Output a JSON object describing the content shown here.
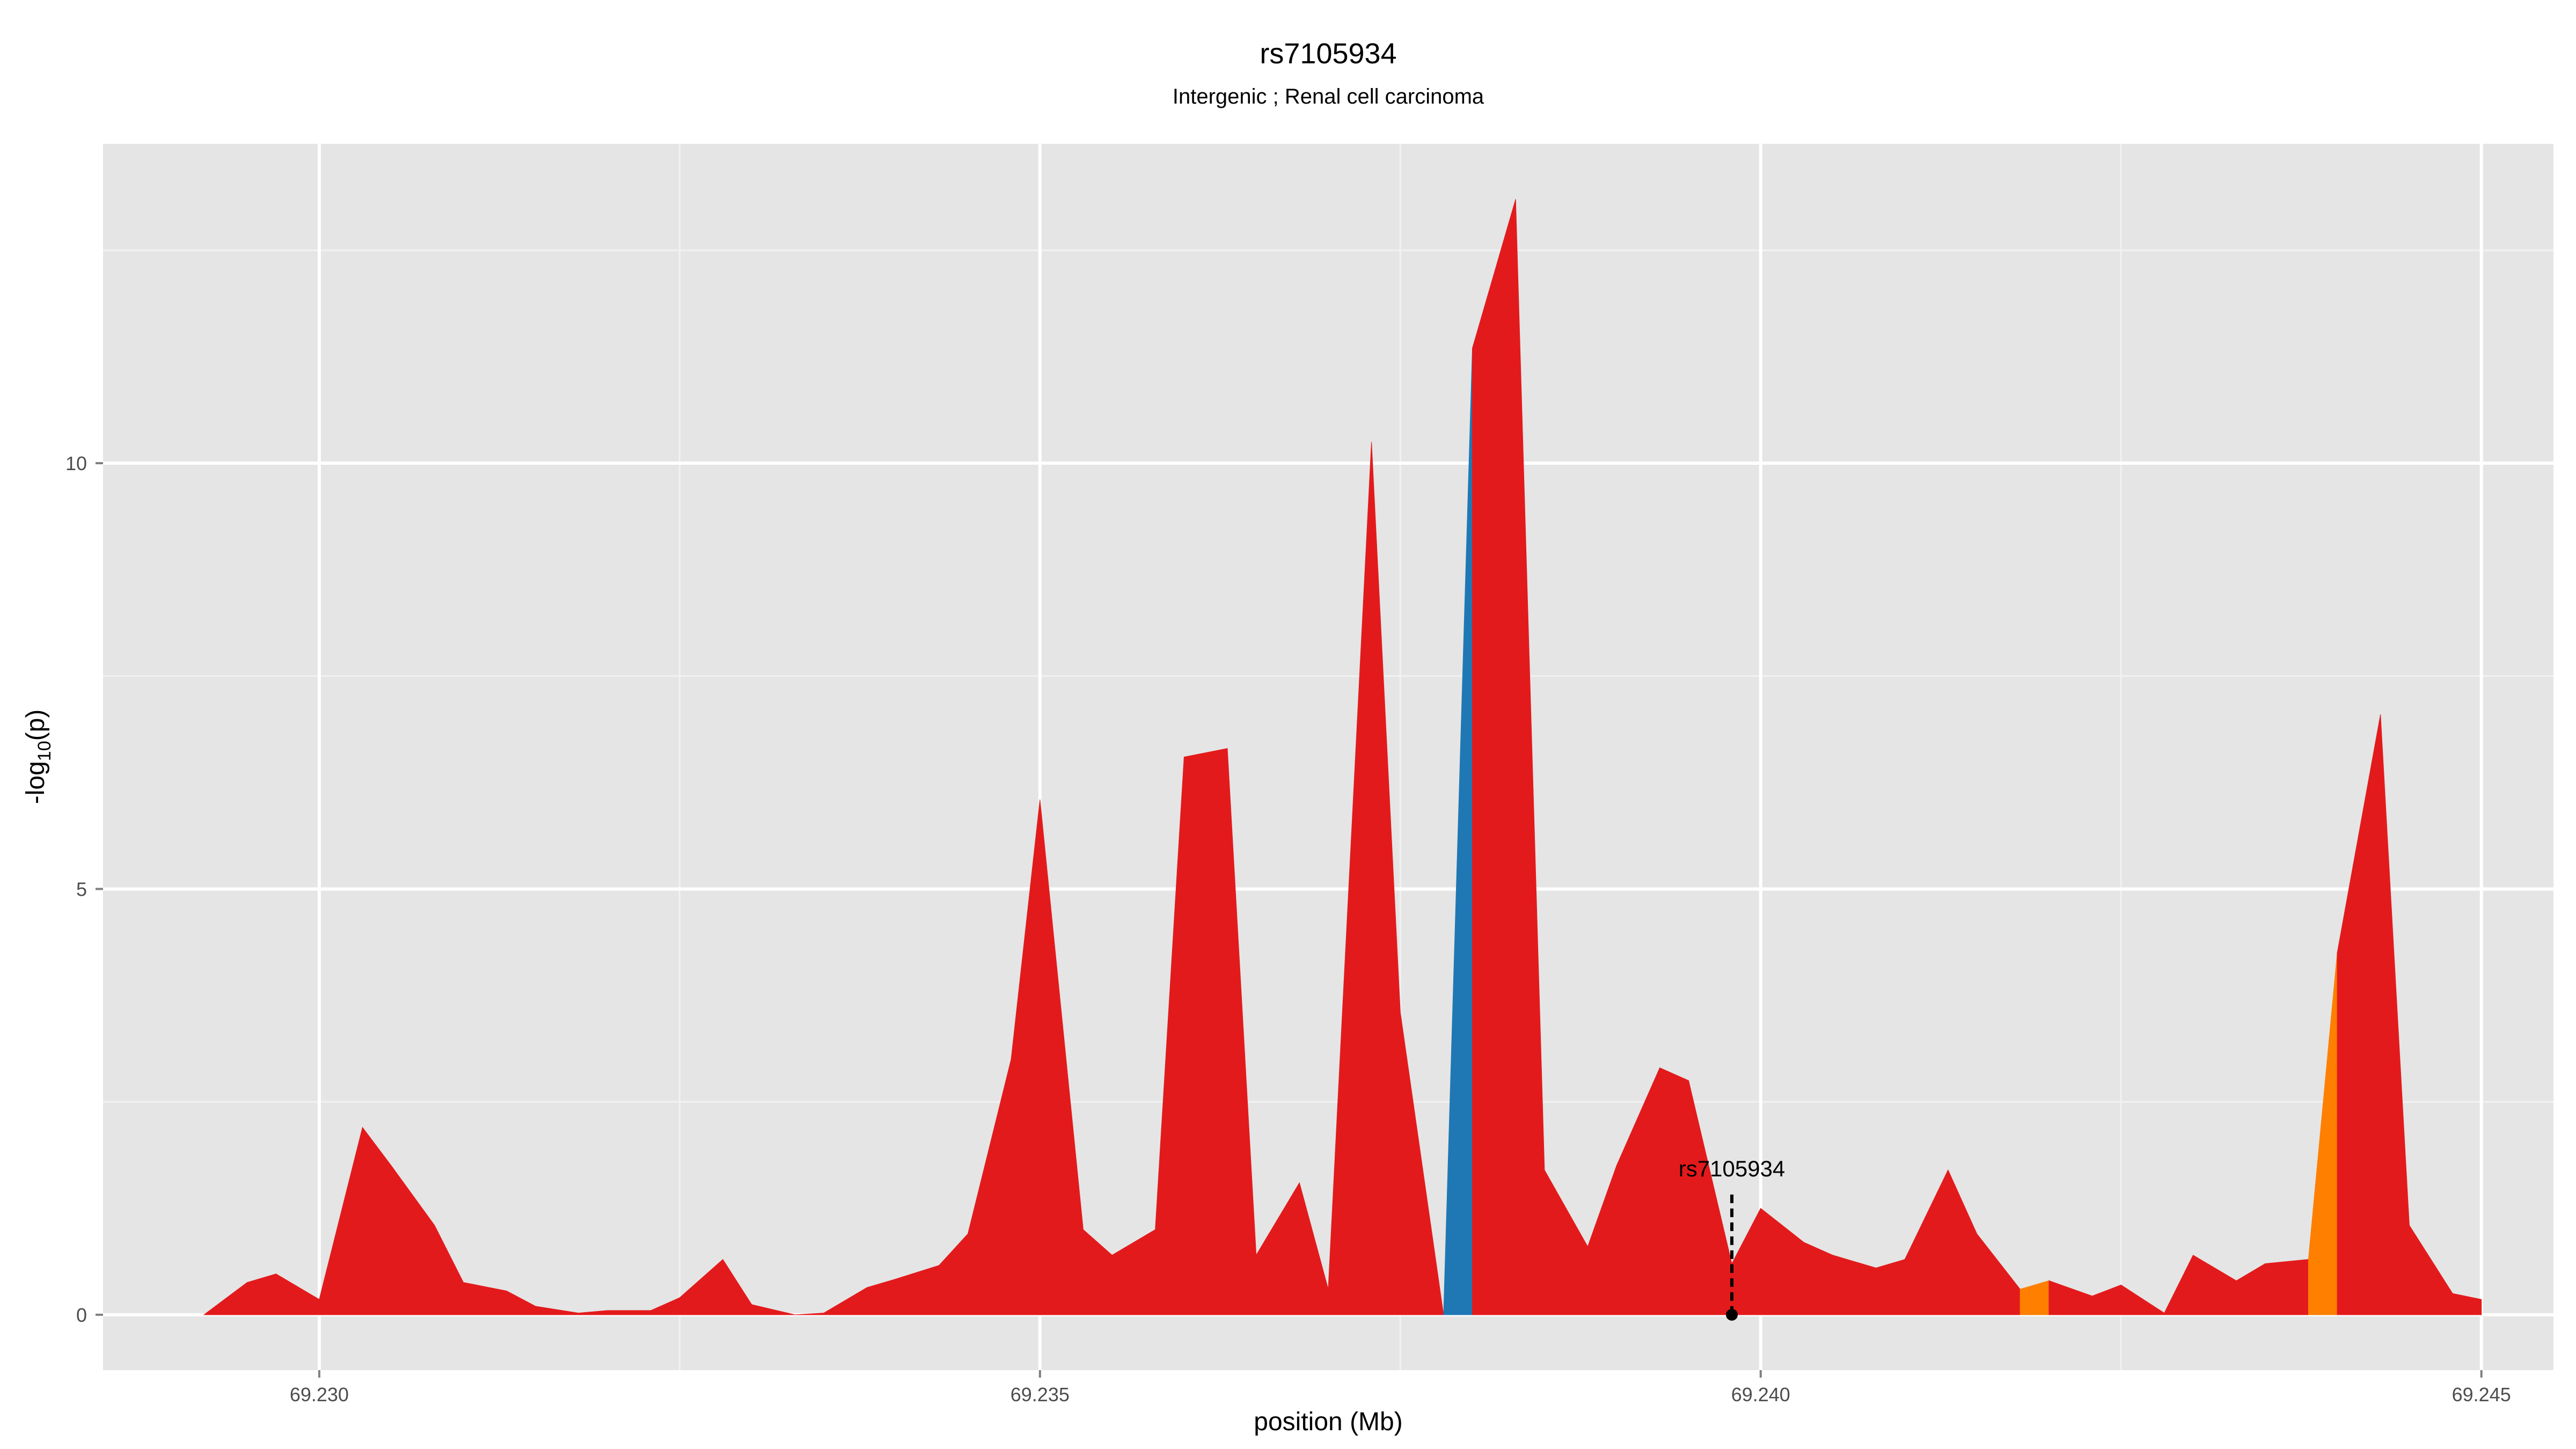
{
  "chart_data": {
    "type": "area",
    "title": "rs7105934",
    "subtitle": "Intergenic ; Renal cell carcinoma",
    "xlabel": "position (Mb)",
    "ylabel": "-log10(p)",
    "xlim": [
      69.2285,
      69.2455
    ],
    "ylim": [
      -0.65,
      13.75
    ],
    "x_ticks": [
      {
        "value": 69.23,
        "label": "69.230"
      },
      {
        "value": 69.235,
        "label": "69.235"
      },
      {
        "value": 69.24,
        "label": "69.240"
      },
      {
        "value": 69.245,
        "label": "69.245"
      }
    ],
    "y_ticks": [
      {
        "value": 0,
        "label": "0"
      },
      {
        "value": 5,
        "label": "5"
      },
      {
        "value": 10,
        "label": "10"
      }
    ],
    "grid": true,
    "legend": "none",
    "colors": {
      "red": "#e31a1c",
      "blue": "#1f78b4",
      "orange": "#ff7f00",
      "panel": "#e5e5e5",
      "grid_major": "#ffffff",
      "grid_minor": "#f2f2f2"
    },
    "series": {
      "x": [
        69.2292,
        69.2295,
        69.2297,
        69.23,
        69.2303,
        69.2305,
        69.2308,
        69.231,
        69.2313,
        69.2315,
        69.2318,
        69.232,
        69.2323,
        69.2325,
        69.2328,
        69.233,
        69.2333,
        69.2335,
        69.2338,
        69.234,
        69.2343,
        69.2345,
        69.2348,
        69.235,
        69.2353,
        69.2355,
        69.2358,
        69.236,
        69.2363,
        69.2365,
        69.2368,
        69.237,
        69.2373,
        69.2375,
        69.2378,
        69.238,
        69.2383,
        69.2385,
        69.2388,
        69.239,
        69.2393,
        69.2395,
        69.2398,
        69.24,
        69.2403,
        69.2405,
        69.2408,
        69.241,
        69.2413,
        69.2415,
        69.2418,
        69.242,
        69.2423,
        69.2425,
        69.2428,
        69.243,
        69.2433,
        69.2435,
        69.2438,
        69.244,
        69.2443,
        69.2445,
        69.2448,
        69.245
      ],
      "y": [
        0.0,
        0.38,
        0.48,
        0.18,
        2.2,
        1.75,
        1.05,
        0.38,
        0.28,
        0.1,
        0.02,
        0.05,
        0.05,
        0.2,
        0.65,
        0.12,
        0.0,
        0.02,
        0.32,
        0.42,
        0.58,
        0.95,
        3.0,
        6.05,
        1.0,
        0.7,
        1.0,
        6.55,
        6.65,
        0.7,
        1.55,
        0.3,
        10.25,
        3.55,
        0.0,
        11.35,
        13.1,
        1.7,
        0.8,
        1.75,
        2.9,
        2.75,
        0.6,
        1.25,
        0.85,
        0.7,
        0.55,
        0.65,
        1.7,
        0.95,
        0.3,
        0.4,
        0.22,
        0.35,
        0.02,
        0.7,
        0.4,
        0.6,
        0.65,
        4.25,
        7.05,
        1.05,
        0.25,
        0.18
      ],
      "color_segments": [
        {
          "x_start": 69.2292,
          "x_end": 69.2378,
          "color": "red"
        },
        {
          "x_start": 69.2378,
          "x_end": 69.238,
          "color": "blue"
        },
        {
          "x_start": 69.238,
          "x_end": 69.2418,
          "color": "red"
        },
        {
          "x_start": 69.2418,
          "x_end": 69.242,
          "color": "orange"
        },
        {
          "x_start": 69.242,
          "x_end": 69.2438,
          "color": "red"
        },
        {
          "x_start": 69.2438,
          "x_end": 69.244,
          "color": "orange"
        },
        {
          "x_start": 69.244,
          "x_end": 69.245,
          "color": "red"
        }
      ]
    },
    "annotation": {
      "label": "rs7105934",
      "x": 69.2398,
      "y": 0,
      "label_y": 1.55
    }
  }
}
